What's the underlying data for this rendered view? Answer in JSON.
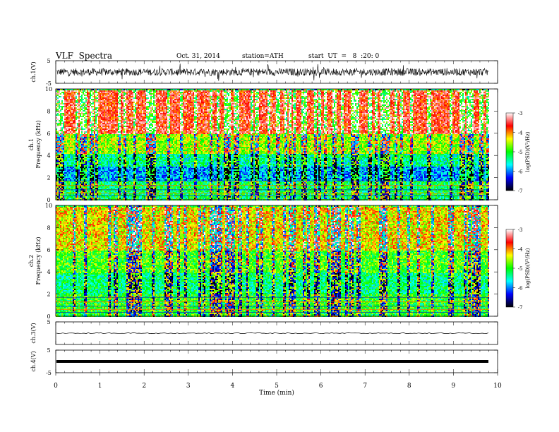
{
  "header": {
    "title": "VLF  Spectra",
    "date": "Oct. 31, 2014",
    "station": "station=ATH",
    "start": "start  UT  =   8  :20: 0"
  },
  "chart_data": [
    {
      "type": "line",
      "panel": "ch1-waveform",
      "ylabel": "ch.1(V)",
      "yticks": [
        "5",
        "-5"
      ],
      "ylim": [
        -5,
        5
      ],
      "xlim": [
        0,
        10
      ],
      "color": "#000000"
    },
    {
      "type": "heatmap",
      "panel": "ch1-spectrogram",
      "ylabel": [
        "ch.1",
        "Frequency  (kHz)"
      ],
      "yticks": [
        "0",
        "2",
        "4",
        "6",
        "8",
        "10"
      ],
      "ylim": [
        0,
        10
      ],
      "xlim": [
        0,
        9.8
      ],
      "color_scale": {
        "label": "log(PSD)(V²/Hz)",
        "ticks": [
          "-3",
          "-4",
          "-5",
          "-6",
          "-7"
        ],
        "range": [
          -7,
          -3
        ],
        "colors": [
          "#000000",
          "#0000ff",
          "#00ffff",
          "#00ff00",
          "#ffff00",
          "#ff0000",
          "#ffffff"
        ]
      },
      "bands": [
        {
          "f": [
            6.0,
            10.0
          ],
          "level": -3.6
        },
        {
          "f": [
            4.2,
            6.0
          ],
          "level": -4.6
        },
        {
          "f": [
            3.0,
            4.2
          ],
          "level": -5.4
        },
        {
          "f": [
            1.8,
            3.0
          ],
          "level": -5.9
        },
        {
          "f": [
            0.0,
            1.8
          ],
          "level": -5.2
        }
      ]
    },
    {
      "type": "heatmap",
      "panel": "ch2-spectrogram",
      "ylabel": [
        "ch.2",
        "Frequency  (kHz)"
      ],
      "yticks": [
        "0",
        "2",
        "4",
        "6",
        "8",
        "10"
      ],
      "ylim": [
        0,
        10
      ],
      "xlim": [
        0,
        9.8
      ],
      "color_scale": {
        "label": "log(PSD)(V²/Hz)",
        "ticks": [
          "-3",
          "-4",
          "-5",
          "-6",
          "-7"
        ],
        "range": [
          -7,
          -3
        ],
        "colors": [
          "#000000",
          "#0000ff",
          "#00ffff",
          "#00ff00",
          "#ffff00",
          "#ff0000",
          "#ffffff"
        ]
      },
      "bands": [
        {
          "f": [
            6.0,
            10.0
          ],
          "level": -4.3
        },
        {
          "f": [
            4.0,
            6.0
          ],
          "level": -4.9
        },
        {
          "f": [
            2.0,
            4.0
          ],
          "level": -5.3
        },
        {
          "f": [
            0.0,
            2.0
          ],
          "level": -5.0
        }
      ]
    },
    {
      "type": "line",
      "panel": "ch3-waveform",
      "ylabel": "ch.3(V)",
      "yticks": [
        "5"
      ],
      "ylim": [
        -5,
        5
      ],
      "xlim": [
        0,
        10
      ],
      "level": 0
    },
    {
      "type": "line",
      "panel": "ch4-waveform",
      "ylabel": "ch.4(V)",
      "yticks": [
        "5",
        "-5"
      ],
      "ylim": [
        -5,
        5
      ],
      "xlim": [
        0,
        10
      ],
      "level": 0
    }
  ],
  "xaxis": {
    "label": "Time  (min)",
    "ticks": [
      "0",
      "1",
      "2",
      "3",
      "4",
      "5",
      "6",
      "7",
      "8",
      "9",
      "10"
    ],
    "xlim": [
      0,
      10
    ]
  }
}
